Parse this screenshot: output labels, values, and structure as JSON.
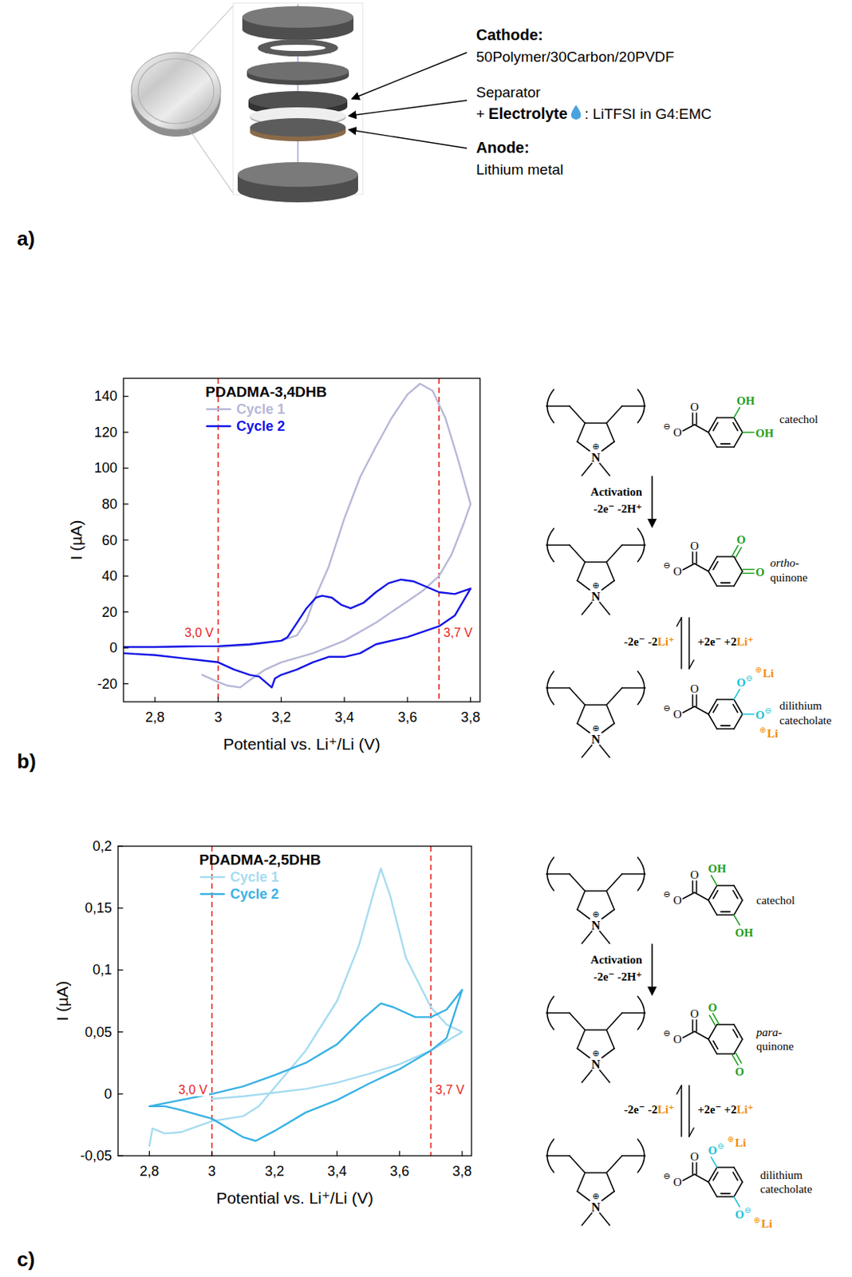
{
  "panel_labels": [
    "a)",
    "b)",
    "c)"
  ],
  "cell_diagram": {
    "cathode_title": "Cathode:",
    "cathode_text": "50Polymer/30Carbon/20PVDF",
    "separator": "Separator",
    "electrolyte_prefix": "+",
    "electrolyte_label": "Electrolyte",
    "electrolyte_text": ": LiTFSI in G4:EMC",
    "anode_title": "Anode:",
    "anode_text": "Lithium metal"
  },
  "chart_data": [
    {
      "type": "line",
      "title": "PDADMA-3,4DHB",
      "x_label": "Potential vs. Li⁺/Li (V)",
      "y_label": "I (µA)",
      "xlim": [
        2.7,
        3.83
      ],
      "ylim": [
        -30,
        150
      ],
      "xticks": [
        {
          "value": 2.8,
          "label": "2,8"
        },
        3,
        {
          "value": 3.2,
          "label": "3,2"
        },
        {
          "value": 3.4,
          "label": "3,4"
        },
        {
          "value": 3.6,
          "label": "3,6"
        },
        {
          "value": 3.8,
          "label": "3,8"
        }
      ],
      "yticks": [
        -20,
        0,
        20,
        40,
        60,
        80,
        100,
        120,
        140
      ],
      "grid": false,
      "legend": "top",
      "series": [
        {
          "name": "Cycle 1",
          "color": "#b6b8d8",
          "x": [
            3.0,
            3.1,
            3.2,
            3.25,
            3.28,
            3.3,
            3.35,
            3.4,
            3.45,
            3.5,
            3.55,
            3.6,
            3.64,
            3.68,
            3.72,
            3.76,
            3.8,
            3.78,
            3.74,
            3.7,
            3.65,
            3.6,
            3.5,
            3.4,
            3.3,
            3.2,
            3.15,
            3.1,
            3.07,
            3.03,
            3.0,
            2.95
          ],
          "values": [
            0.5,
            1.5,
            4,
            7,
            15,
            25,
            45,
            72,
            95,
            112,
            128,
            141,
            147,
            143,
            128,
            105,
            80,
            70,
            52,
            40,
            32,
            26,
            14,
            4,
            -3,
            -8,
            -12,
            -18,
            -22,
            -21,
            -19,
            -15
          ]
        },
        {
          "name": "Cycle 2",
          "color": "#1414e6",
          "x": [
            2.7,
            2.8,
            2.9,
            3.0,
            3.1,
            3.2,
            3.22,
            3.25,
            3.28,
            3.31,
            3.33,
            3.36,
            3.39,
            3.42,
            3.46,
            3.5,
            3.54,
            3.58,
            3.62,
            3.66,
            3.7,
            3.75,
            3.8,
            3.78,
            3.75,
            3.7,
            3.6,
            3.5,
            3.45,
            3.4,
            3.35,
            3.3,
            3.25,
            3.2,
            3.18,
            3.17,
            3.15,
            3.13,
            3.1,
            3.05,
            3.0,
            2.9,
            2.8,
            2.7
          ],
          "values": [
            0.5,
            0.5,
            0.8,
            1,
            2,
            4,
            6,
            14,
            22,
            28,
            29,
            28,
            24,
            22,
            25,
            31,
            36,
            38,
            37,
            34,
            31,
            30,
            33,
            27,
            18,
            12,
            6,
            2,
            -3,
            -5,
            -5,
            -8,
            -12,
            -15,
            -17,
            -22,
            -19,
            -16,
            -15,
            -12,
            -8,
            -6,
            -4,
            -3
          ]
        }
      ],
      "annotations": [
        {
          "x": 3.0,
          "label": "3,0 V"
        },
        {
          "x": 3.7,
          "label": "3,7 V"
        }
      ]
    },
    {
      "type": "line",
      "title": "PDADMA-2,5DHB",
      "x_label": "Potential vs. Li⁺/Li (V)",
      "y_label": "I (µA)",
      "xlim": [
        2.7,
        3.83
      ],
      "ylim": [
        -0.05,
        0.2
      ],
      "xticks": [
        {
          "value": 2.8,
          "label": "2,8"
        },
        3,
        {
          "value": 3.2,
          "label": "3,2"
        },
        {
          "value": 3.4,
          "label": "3,4"
        },
        {
          "value": 3.6,
          "label": "3,6"
        },
        {
          "value": 3.8,
          "label": "3,8"
        }
      ],
      "yticks": [
        {
          "value": -0.05,
          "label": "-0,05"
        },
        0,
        {
          "value": 0.05,
          "label": "0,05"
        },
        {
          "value": 0.1,
          "label": "0,1"
        },
        {
          "value": 0.15,
          "label": "0,15"
        },
        {
          "value": 0.2,
          "label": "0,2"
        }
      ],
      "grid": false,
      "legend": "top",
      "series": [
        {
          "name": "Cycle 1",
          "color": "#a6dcf1",
          "x": [
            2.8,
            2.81,
            2.85,
            2.9,
            3.0,
            3.1,
            3.15,
            3.2,
            3.3,
            3.4,
            3.47,
            3.52,
            3.54,
            3.57,
            3.62,
            3.7,
            3.75,
            3.8,
            3.7,
            3.6,
            3.5,
            3.4,
            3.3,
            3.2,
            3.1,
            3.0
          ],
          "values": [
            -0.042,
            -0.028,
            -0.032,
            -0.031,
            -0.022,
            -0.018,
            -0.01,
            0.005,
            0.035,
            0.075,
            0.12,
            0.165,
            0.182,
            0.16,
            0.11,
            0.07,
            0.056,
            0.05,
            0.035,
            0.024,
            0.016,
            0.009,
            0.004,
            0.001,
            -0.002,
            -0.004
          ]
        },
        {
          "name": "Cycle 2",
          "color": "#38b2e4",
          "x": [
            2.8,
            2.9,
            3.0,
            3.1,
            3.2,
            3.3,
            3.4,
            3.48,
            3.54,
            3.58,
            3.65,
            3.7,
            3.75,
            3.8,
            3.75,
            3.7,
            3.6,
            3.5,
            3.4,
            3.3,
            3.2,
            3.14,
            3.1,
            3.0,
            2.9,
            2.85,
            2.8
          ],
          "values": [
            -0.01,
            -0.005,
            0,
            0.006,
            0.015,
            0.025,
            0.04,
            0.06,
            0.073,
            0.07,
            0.062,
            0.062,
            0.068,
            0.084,
            0.045,
            0.035,
            0.02,
            0.008,
            -0.005,
            -0.015,
            -0.03,
            -0.038,
            -0.035,
            -0.02,
            -0.013,
            -0.01,
            -0.01
          ]
        }
      ],
      "annotations": [
        {
          "x": 3.0,
          "label": "3,0 V"
        },
        {
          "x": 3.7,
          "label": "3,7 V"
        }
      ]
    }
  ],
  "atoms": {
    "N": "N",
    "O": "O",
    "OH": "OH",
    "Li": "Li",
    "plus": "⊕",
    "minus": "⊖"
  },
  "schemes": [
    {
      "start_label": "catechol",
      "activation": "Activation",
      "activation_change": "-2e⁻ -2H⁺",
      "mid_label": [
        "ortho-",
        "quinone"
      ],
      "ox": [
        "-2e⁻ -2",
        "Li⁺"
      ],
      "red": [
        "+2e⁻ +2",
        "Li⁺"
      ],
      "end_label": [
        "dilithium",
        "catecholate"
      ]
    },
    {
      "start_label": "catechol",
      "activation": "Activation",
      "activation_change": "-2e⁻ -2H⁺",
      "mid_label": [
        "para-",
        "quinone"
      ],
      "ox": [
        "-2e⁻ -2",
        "Li⁺"
      ],
      "red": [
        "+2e⁻ +2",
        "Li⁺"
      ],
      "end_label": [
        "dilithium",
        "catecholate"
      ]
    }
  ]
}
